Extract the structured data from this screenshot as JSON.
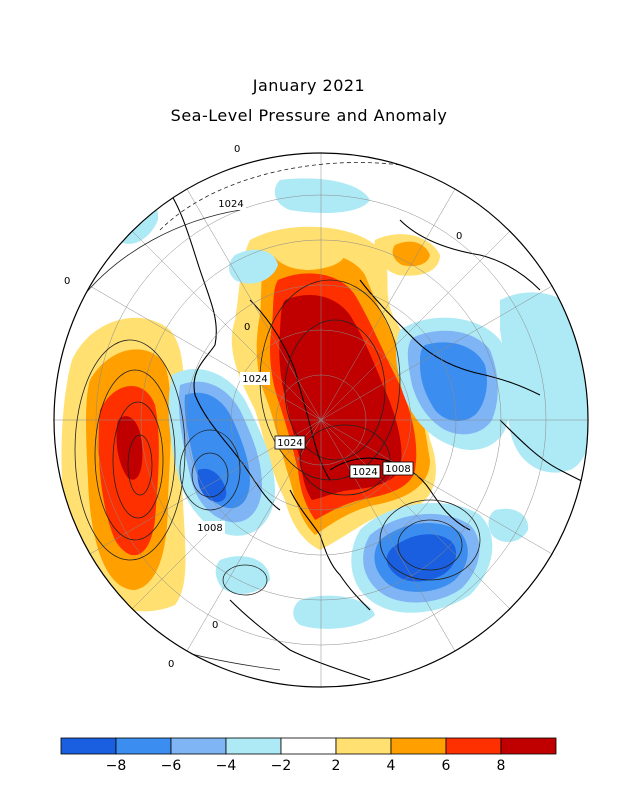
{
  "title": "January 2021",
  "subtitle": "Sea-Level Pressure and Anomaly",
  "colorbar": {
    "colors": [
      "#1a5fe0",
      "#3b8ef0",
      "#7fb5f5",
      "#aeeaf5",
      "#ffffff",
      "#ffe070",
      "#ffa000",
      "#ff3000",
      "#c00000"
    ],
    "tick_labels": [
      "−8",
      "−6",
      "−4",
      "−2",
      "2",
      "4",
      "6",
      "8"
    ]
  },
  "isobar_labels": [
    "1024",
    "1024",
    "1024",
    "1024",
    "1008",
    "1008"
  ],
  "contour_zero_labels": [
    "0",
    "0",
    "0",
    "0",
    "0",
    "0"
  ]
}
